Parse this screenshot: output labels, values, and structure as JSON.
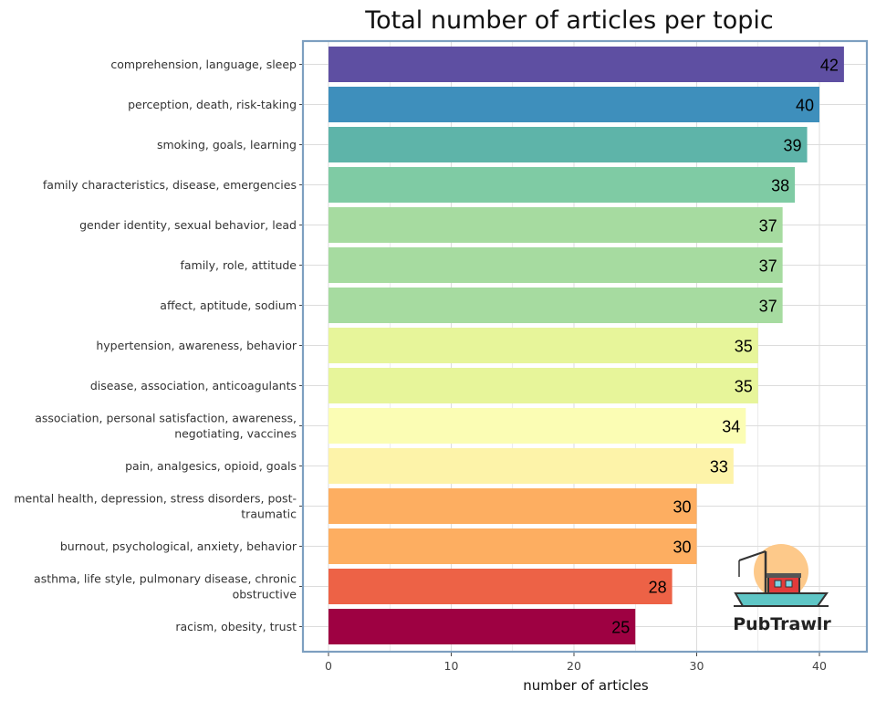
{
  "chart_data": {
    "type": "bar",
    "orientation": "horizontal",
    "title": "Total number of articles per topic",
    "xlabel": "number of articles",
    "ylabel": "",
    "xlim": [
      0,
      44
    ],
    "xticks": [
      0,
      10,
      20,
      30,
      40
    ],
    "grid": true,
    "categories": [
      [
        "comprehension, language, sleep"
      ],
      [
        "perception, death, risk-taking"
      ],
      [
        "smoking, goals, learning"
      ],
      [
        "family characteristics, disease, emergencies"
      ],
      [
        "gender identity, sexual behavior, lead"
      ],
      [
        "family, role, attitude"
      ],
      [
        "affect, aptitude, sodium"
      ],
      [
        "hypertension, awareness, behavior"
      ],
      [
        "disease, association, anticoagulants"
      ],
      [
        "association, personal satisfaction, awareness,",
        "negotiating, vaccines"
      ],
      [
        "pain, analgesics, opioid, goals"
      ],
      [
        "mental health, depression, stress disorders, post-",
        "traumatic"
      ],
      [
        "burnout, psychological, anxiety, behavior"
      ],
      [
        "asthma, life style, pulmonary disease, chronic",
        "obstructive"
      ],
      [
        "racism, obesity, trust"
      ]
    ],
    "values": [
      42,
      40,
      39,
      38,
      37,
      37,
      37,
      35,
      35,
      34,
      33,
      30,
      30,
      28,
      25
    ],
    "colors": [
      "#5e4fa2",
      "#3e8fbc",
      "#5eb4a9",
      "#7fcba4",
      "#a6dba0",
      "#a6dba0",
      "#a6dba0",
      "#e7f59a",
      "#e7f59a",
      "#fbfdb4",
      "#fdf3a9",
      "#fdae61",
      "#fdae61",
      "#ed6246",
      "#9e0142"
    ]
  },
  "logo": {
    "text": "PubTrawlr"
  },
  "style": {
    "panel_border": "#7d9fc0",
    "grid_color": "#dcdcdc"
  }
}
